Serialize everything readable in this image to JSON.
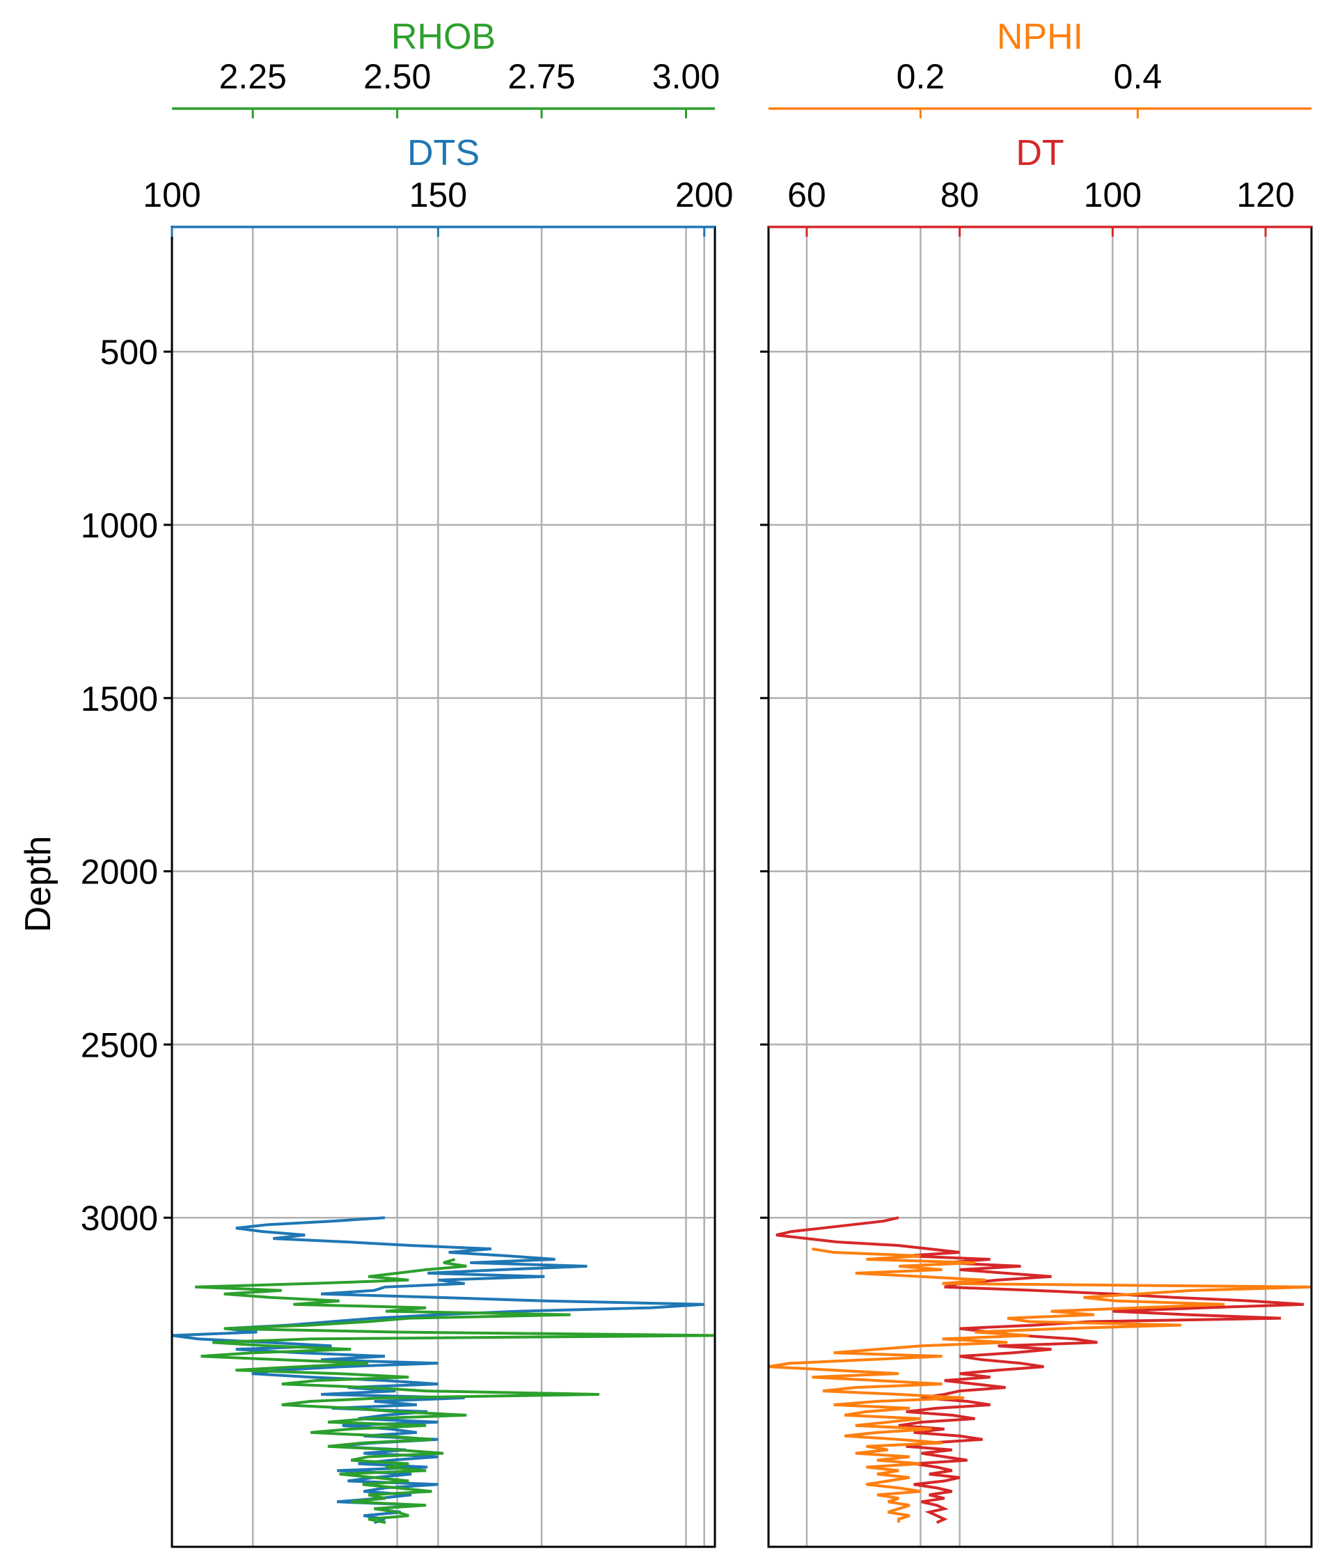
{
  "chart_data": [
    {
      "type": "line",
      "orientation": "vertical-log-track",
      "ylabel": "Depth",
      "ylim": [
        140,
        3950
      ],
      "y_inverted": true,
      "yticks": [
        500,
        1000,
        1500,
        2000,
        2500,
        3000
      ],
      "ytick_labels": [
        "500",
        "1000",
        "1500",
        "2000",
        "2500",
        "3000"
      ],
      "grid": true,
      "top_axes": [
        {
          "label": "DTS",
          "color": "#1f77b4",
          "xlim": [
            100,
            202
          ],
          "ticks": [
            100,
            150,
            200
          ],
          "tick_labels": [
            "100",
            "150",
            "200"
          ]
        },
        {
          "label": "RHOB",
          "color": "#2ca02c",
          "xlim": [
            2.11,
            3.05
          ],
          "ticks": [
            2.25,
            2.5,
            2.75,
            3.0
          ],
          "tick_labels": [
            "2.25",
            "2.50",
            "2.75",
            "3.00"
          ]
        }
      ],
      "series": [
        {
          "name": "DTS",
          "color": "#1f77b4",
          "depth": [
            3000,
            3010,
            3020,
            3030,
            3040,
            3050,
            3060,
            3070,
            3080,
            3090,
            3100,
            3110,
            3120,
            3130,
            3140,
            3150,
            3160,
            3170,
            3180,
            3190,
            3200,
            3210,
            3220,
            3230,
            3240,
            3250,
            3260,
            3270,
            3280,
            3290,
            3300,
            3310,
            3320,
            3330,
            3340,
            3350,
            3360,
            3370,
            3380,
            3390,
            3400,
            3410,
            3420,
            3430,
            3440,
            3450,
            3460,
            3470,
            3480,
            3490,
            3500,
            3510,
            3520,
            3530,
            3540,
            3550,
            3560,
            3570,
            3580,
            3590,
            3600,
            3610,
            3620,
            3630,
            3640,
            3650,
            3660,
            3670,
            3680,
            3690,
            3700,
            3710,
            3720,
            3730,
            3740,
            3750,
            3760,
            3770,
            3780,
            3790,
            3800,
            3810,
            3820,
            3830,
            3840,
            3850,
            3860,
            3870,
            3880
          ],
          "values": [
            140,
            130,
            118,
            112,
            117,
            125,
            119,
            133,
            145,
            160,
            152,
            163,
            172,
            156,
            178,
            162,
            148,
            170,
            150,
            155,
            140,
            138,
            128,
            150,
            170,
            200,
            190,
            165,
            150,
            138,
            130,
            122,
            110,
            116,
            100,
            105,
            118,
            130,
            112,
            124,
            140,
            128,
            150,
            132,
            120,
            115,
            126,
            140,
            150,
            133,
            142,
            128,
            155,
            138,
            146,
            130,
            148,
            140,
            135,
            150,
            132,
            141,
            146,
            136,
            150,
            138,
            130,
            144,
            136,
            150,
            141,
            135,
            148,
            131,
            145,
            138,
            133,
            150,
            140,
            136,
            145,
            139,
            131,
            147,
            138,
            143,
            136,
            140,
            138
          ]
        },
        {
          "name": "RHOB",
          "color": "#2ca02c",
          "depth": [
            3120,
            3130,
            3140,
            3150,
            3160,
            3170,
            3180,
            3190,
            3200,
            3210,
            3220,
            3230,
            3240,
            3250,
            3260,
            3270,
            3280,
            3290,
            3300,
            3310,
            3320,
            3330,
            3340,
            3350,
            3360,
            3370,
            3380,
            3390,
            3400,
            3410,
            3420,
            3430,
            3440,
            3450,
            3460,
            3470,
            3480,
            3490,
            3500,
            3510,
            3520,
            3530,
            3540,
            3550,
            3560,
            3570,
            3580,
            3590,
            3600,
            3610,
            3620,
            3630,
            3640,
            3650,
            3660,
            3670,
            3680,
            3690,
            3700,
            3710,
            3720,
            3730,
            3740,
            3750,
            3760,
            3770,
            3780,
            3790,
            3800,
            3810,
            3820,
            3830,
            3840,
            3850,
            3860,
            3870,
            3880
          ],
          "values": [
            2.6,
            2.58,
            2.62,
            2.55,
            2.5,
            2.45,
            2.52,
            2.35,
            2.15,
            2.3,
            2.2,
            2.28,
            2.4,
            2.32,
            2.55,
            2.48,
            2.8,
            2.52,
            2.45,
            2.35,
            2.2,
            2.5,
            3.05,
            2.35,
            2.18,
            2.28,
            2.42,
            2.25,
            2.16,
            2.3,
            2.45,
            2.33,
            2.22,
            2.4,
            2.52,
            2.36,
            2.3,
            2.45,
            2.55,
            2.85,
            2.48,
            2.35,
            2.3,
            2.42,
            2.5,
            2.62,
            2.45,
            2.38,
            2.55,
            2.42,
            2.35,
            2.48,
            2.56,
            2.44,
            2.38,
            2.5,
            2.58,
            2.45,
            2.42,
            2.52,
            2.48,
            2.55,
            2.4,
            2.46,
            2.52,
            2.44,
            2.5,
            2.56,
            2.45,
            2.48,
            2.42,
            2.55,
            2.46,
            2.5,
            2.52,
            2.45,
            2.48
          ]
        }
      ]
    },
    {
      "type": "line",
      "orientation": "vertical-log-track",
      "ylim": [
        140,
        3950
      ],
      "y_inverted": true,
      "grid": true,
      "top_axes": [
        {
          "label": "DT",
          "color": "#d62728",
          "xlim": [
            55,
            126
          ],
          "ticks": [
            60,
            80,
            100,
            120
          ],
          "tick_labels": [
            "60",
            "80",
            "100",
            "120"
          ]
        },
        {
          "label": "NPHI",
          "color": "#ff7f0e",
          "xlim": [
            0.06,
            0.56
          ],
          "ticks": [
            0.2,
            0.4
          ],
          "tick_labels": [
            "0.2",
            "0.4"
          ]
        }
      ],
      "series": [
        {
          "name": "DT",
          "color": "#d62728",
          "depth": [
            3000,
            3010,
            3020,
            3030,
            3040,
            3050,
            3060,
            3070,
            3080,
            3090,
            3100,
            3110,
            3120,
            3130,
            3140,
            3150,
            3160,
            3170,
            3180,
            3190,
            3200,
            3210,
            3220,
            3230,
            3240,
            3250,
            3260,
            3270,
            3280,
            3290,
            3300,
            3310,
            3320,
            3330,
            3340,
            3350,
            3360,
            3370,
            3380,
            3390,
            3400,
            3410,
            3420,
            3430,
            3440,
            3450,
            3460,
            3470,
            3480,
            3490,
            3500,
            3510,
            3520,
            3530,
            3540,
            3550,
            3560,
            3570,
            3580,
            3590,
            3600,
            3610,
            3620,
            3630,
            3640,
            3650,
            3660,
            3670,
            3680,
            3690,
            3700,
            3710,
            3720,
            3730,
            3740,
            3750,
            3760,
            3770,
            3780,
            3790,
            3800,
            3810,
            3820,
            3830,
            3840,
            3850,
            3860,
            3870,
            3880
          ],
          "values": [
            72,
            70,
            66,
            62,
            58,
            56,
            60,
            64,
            72,
            76,
            80,
            73,
            84,
            78,
            88,
            80,
            86,
            92,
            85,
            80,
            78,
            90,
            100,
            108,
            118,
            125,
            112,
            100,
            110,
            122,
            97,
            90,
            80,
            84,
            88,
            95,
            98,
            85,
            92,
            87,
            80,
            83,
            88,
            91,
            85,
            80,
            84,
            78,
            82,
            86,
            80,
            78,
            75,
            81,
            84,
            77,
            73,
            79,
            82,
            75,
            72,
            78,
            74,
            80,
            83,
            76,
            73,
            79,
            75,
            78,
            81,
            74,
            77,
            79,
            76,
            80,
            78,
            74,
            77,
            79,
            76,
            78,
            75,
            77,
            78,
            76,
            77,
            78,
            77
          ]
        },
        {
          "name": "NPHI",
          "color": "#ff7f0e",
          "depth": [
            3090,
            3100,
            3110,
            3120,
            3130,
            3140,
            3150,
            3160,
            3170,
            3180,
            3190,
            3200,
            3210,
            3220,
            3230,
            3240,
            3250,
            3260,
            3270,
            3280,
            3290,
            3300,
            3310,
            3320,
            3330,
            3340,
            3350,
            3360,
            3370,
            3380,
            3390,
            3400,
            3410,
            3420,
            3430,
            3440,
            3450,
            3460,
            3470,
            3480,
            3490,
            3500,
            3510,
            3520,
            3530,
            3540,
            3550,
            3560,
            3570,
            3580,
            3590,
            3600,
            3610,
            3620,
            3630,
            3640,
            3650,
            3660,
            3670,
            3680,
            3690,
            3700,
            3710,
            3720,
            3730,
            3740,
            3750,
            3760,
            3770,
            3780,
            3790,
            3800,
            3810,
            3820,
            3830,
            3840,
            3850,
            3860,
            3870,
            3880
          ],
          "values": [
            0.1,
            0.12,
            0.2,
            0.15,
            0.25,
            0.18,
            0.22,
            0.14,
            0.2,
            0.26,
            0.22,
            0.56,
            0.45,
            0.4,
            0.35,
            0.38,
            0.48,
            0.4,
            0.32,
            0.36,
            0.28,
            0.3,
            0.44,
            0.33,
            0.25,
            0.3,
            0.22,
            0.28,
            0.2,
            0.16,
            0.12,
            0.22,
            0.15,
            0.08,
            0.06,
            0.12,
            0.18,
            0.1,
            0.16,
            0.22,
            0.14,
            0.11,
            0.18,
            0.24,
            0.16,
            0.12,
            0.19,
            0.15,
            0.13,
            0.2,
            0.17,
            0.14,
            0.21,
            0.16,
            0.13,
            0.18,
            0.22,
            0.15,
            0.17,
            0.14,
            0.19,
            0.16,
            0.2,
            0.15,
            0.18,
            0.16,
            0.19,
            0.17,
            0.15,
            0.18,
            0.2,
            0.16,
            0.18,
            0.17,
            0.19,
            0.18,
            0.17,
            0.19,
            0.18,
            0.18
          ]
        }
      ]
    }
  ]
}
